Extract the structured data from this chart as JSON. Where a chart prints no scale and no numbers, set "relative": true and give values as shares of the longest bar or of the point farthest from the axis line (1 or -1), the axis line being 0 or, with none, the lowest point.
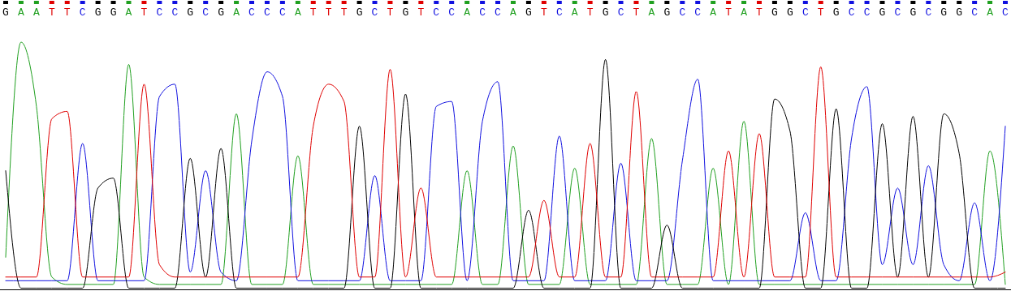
{
  "chart_data": {
    "type": "line",
    "relative": true,
    "categories": [
      "G",
      "A",
      "A",
      "T",
      "T",
      "C",
      "G",
      "G",
      "A",
      "T",
      "C",
      "C",
      "G",
      "C",
      "G",
      "A",
      "C",
      "C",
      "C",
      "A",
      "T",
      "T",
      "T",
      "G",
      "C",
      "T",
      "G",
      "T",
      "C",
      "C",
      "A",
      "C",
      "C",
      "A",
      "G",
      "T",
      "C",
      "A",
      "T",
      "G",
      "C",
      "T",
      "A",
      "G",
      "C",
      "C",
      "A",
      "T",
      "A",
      "T",
      "G",
      "G",
      "C",
      "T",
      "G",
      "C",
      "C",
      "G",
      "C",
      "G",
      "C",
      "G",
      "G",
      "C",
      "A",
      "C"
    ],
    "series": [
      {
        "color": "#20a020",
        "values": [
          0.13,
          1,
          0.74,
          0.05,
          0.02,
          0.02,
          0.02,
          0.02,
          0.91,
          0.05,
          0.02,
          0.02,
          0.02,
          0.02,
          0.02,
          0.71,
          0.02,
          0.02,
          0.02,
          0.54,
          0.02,
          0.02,
          0.02,
          0.02,
          0.02,
          0.02,
          0.02,
          0.02,
          0.02,
          0.02,
          0.48,
          0.02,
          0.02,
          0.58,
          0.02,
          0.02,
          0.02,
          0.49,
          0.02,
          0.02,
          0.02,
          0.02,
          0.61,
          0.02,
          0.02,
          0.02,
          0.49,
          0.02,
          0.68,
          0.02,
          0.02,
          0.02,
          0.02,
          0.02,
          0.02,
          0.02,
          0.02,
          0.02,
          0.02,
          0.02,
          0.02,
          0.02,
          0.02,
          0.02,
          0.56,
          0.02
        ]
      },
      {
        "color": "#1010e0",
        "values": [
          0.035,
          0.035,
          0.035,
          0.035,
          0.035,
          0.59,
          0.035,
          0.035,
          0.035,
          0.035,
          0.78,
          0.83,
          0.07,
          0.48,
          0.07,
          0.035,
          0.6,
          0.88,
          0.78,
          0.035,
          0.035,
          0.035,
          0.035,
          0.035,
          0.46,
          0.035,
          0.035,
          0.035,
          0.74,
          0.76,
          0.035,
          0.68,
          0.84,
          0.035,
          0.035,
          0.035,
          0.62,
          0.035,
          0.035,
          0.035,
          0.51,
          0.035,
          0.035,
          0.035,
          0.52,
          0.85,
          0.035,
          0.035,
          0.035,
          0.035,
          0.035,
          0.035,
          0.31,
          0.035,
          0.035,
          0.61,
          0.82,
          0.1,
          0.41,
          0.1,
          0.5,
          0.1,
          0.035,
          0.35,
          0.035,
          0.66
        ]
      },
      {
        "color": "#000000",
        "values": [
          0.48,
          0.005,
          0.005,
          0.005,
          0.005,
          0.005,
          0.41,
          0.45,
          0.005,
          0.005,
          0.005,
          0.005,
          0.53,
          0.05,
          0.57,
          0.005,
          0.005,
          0.005,
          0.005,
          0.005,
          0.005,
          0.005,
          0.005,
          0.66,
          0.005,
          0.005,
          0.79,
          0.005,
          0.005,
          0.005,
          0.005,
          0.005,
          0.005,
          0.005,
          0.32,
          0.005,
          0.005,
          0.005,
          0.005,
          0.93,
          0.005,
          0.005,
          0.005,
          0.26,
          0.005,
          0.005,
          0.005,
          0.005,
          0.005,
          0.005,
          0.77,
          0.64,
          0.005,
          0.005,
          0.73,
          0.005,
          0.005,
          0.67,
          0.05,
          0.7,
          0.05,
          0.71,
          0.55,
          0.005,
          0.005,
          0.005
        ]
      },
      {
        "color": "#e00000",
        "values": [
          0.05,
          0.05,
          0.05,
          0.69,
          0.72,
          0.05,
          0.05,
          0.05,
          0.05,
          0.83,
          0.1,
          0.05,
          0.05,
          0.05,
          0.05,
          0.05,
          0.05,
          0.05,
          0.05,
          0.05,
          0.66,
          0.83,
          0.76,
          0.05,
          0.05,
          0.89,
          0.05,
          0.41,
          0.05,
          0.05,
          0.05,
          0.05,
          0.05,
          0.05,
          0.05,
          0.36,
          0.05,
          0.05,
          0.59,
          0.05,
          0.05,
          0.8,
          0.05,
          0.05,
          0.05,
          0.05,
          0.05,
          0.56,
          0.05,
          0.63,
          0.05,
          0.05,
          0.05,
          0.9,
          0.05,
          0.05,
          0.05,
          0.05,
          0.05,
          0.05,
          0.05,
          0.05,
          0.05,
          0.05,
          0.05,
          0.07
        ]
      }
    ]
  }
}
